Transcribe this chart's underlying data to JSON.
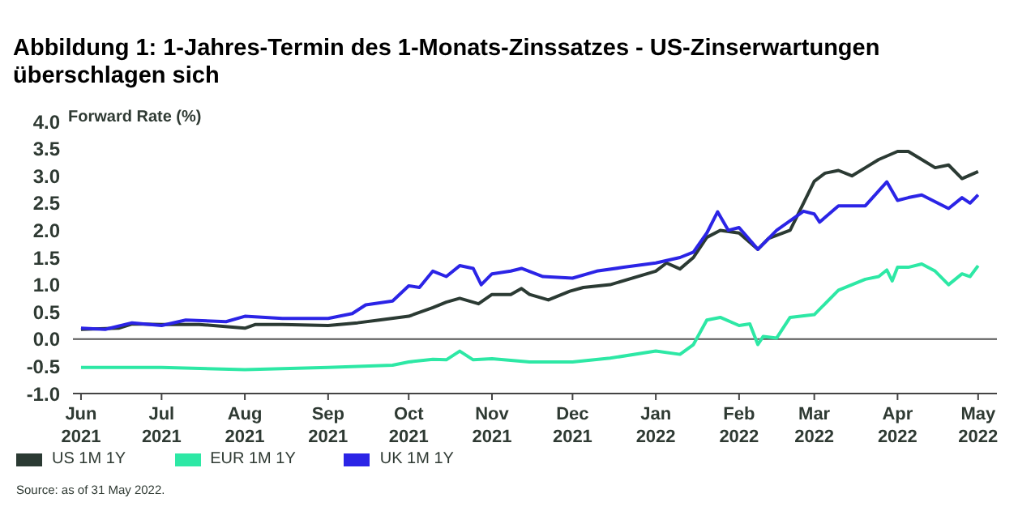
{
  "chart_data": {
    "type": "line",
    "title": "Abbildung 1: 1-Jahres-Termin des 1-Monats-Zinssatzes - US-Zinserwartungen überschlagen sich",
    "ylabel": "Forward Rate (%)",
    "annotations": [
      "Source: as of 31 May 2022."
    ],
    "xlim": [
      "2021-05-29",
      "2022-05-08"
    ],
    "xticks": [
      {
        "value": "2021-06-01",
        "label": "Jun\n2021"
      },
      {
        "value": "2021-07-01",
        "label": "Jul\n2021"
      },
      {
        "value": "2021-08-01",
        "label": "Aug\n2021"
      },
      {
        "value": "2021-09-01",
        "label": "Sep\n2021"
      },
      {
        "value": "2021-10-01",
        "label": "Oct\n2021"
      },
      {
        "value": "2021-11-01",
        "label": "Nov\n2021"
      },
      {
        "value": "2021-12-01",
        "label": "Dec\n2021"
      },
      {
        "value": "2022-01-01",
        "label": "Jan\n2022"
      },
      {
        "value": "2022-02-01",
        "label": "Feb\n2022"
      },
      {
        "value": "2022-03-01",
        "label": "Mar\n2022"
      },
      {
        "value": "2022-04-01",
        "label": "Apr\n2022"
      },
      {
        "value": "2022-05-01",
        "label": "May\n2022"
      }
    ],
    "ylim": [
      -1,
      4
    ],
    "yticks": [
      {
        "value": -1,
        "label": "-1.0"
      },
      {
        "value": -0.5,
        "label": "-0.5"
      },
      {
        "value": 0,
        "label": "0.0"
      },
      {
        "value": 0.5,
        "label": "0.5"
      },
      {
        "value": 1,
        "label": "1.0"
      },
      {
        "value": 1.5,
        "label": "1.5"
      },
      {
        "value": 2,
        "label": "2.0"
      },
      {
        "value": 2.5,
        "label": "2.5"
      },
      {
        "value": 3,
        "label": "3.0"
      },
      {
        "value": 3.5,
        "label": "3.5"
      },
      {
        "value": 4,
        "label": "4.0"
      }
    ],
    "ref_lines": [
      {
        "axis": "y",
        "value": 0,
        "color": "#555555"
      }
    ],
    "grid": false,
    "legend": "bottom left",
    "marker": "none",
    "line_style": "solid",
    "series": [
      {
        "name": "US 1M 1Y",
        "color": "#2b3a33",
        "x": [
          "2021-06-01",
          "2021-06-15",
          "2021-06-20",
          "2021-07-01",
          "2021-07-15",
          "2021-08-01",
          "2021-08-05",
          "2021-08-15",
          "2021-09-01",
          "2021-09-12",
          "2021-09-20",
          "2021-10-01",
          "2021-10-10",
          "2021-10-15",
          "2021-10-20",
          "2021-10-27",
          "2021-11-01",
          "2021-11-08",
          "2021-11-12",
          "2021-11-15",
          "2021-11-22",
          "2021-11-30",
          "2021-12-05",
          "2021-12-15",
          "2022-01-01",
          "2022-01-05",
          "2022-01-10",
          "2022-01-15",
          "2022-01-20",
          "2022-01-25",
          "2022-02-01",
          "2022-02-08",
          "2022-02-12",
          "2022-02-20",
          "2022-03-01",
          "2022-03-05",
          "2022-03-10",
          "2022-03-15",
          "2022-03-20",
          "2022-03-25",
          "2022-04-01",
          "2022-04-05",
          "2022-04-10",
          "2022-04-15",
          "2022-04-20",
          "2022-04-25",
          "2022-05-01"
        ],
        "values": [
          0.18,
          0.2,
          0.28,
          0.27,
          0.27,
          0.2,
          0.27,
          0.27,
          0.25,
          0.3,
          0.35,
          0.42,
          0.58,
          0.68,
          0.75,
          0.65,
          0.82,
          0.82,
          0.93,
          0.82,
          0.72,
          0.88,
          0.95,
          1.0,
          1.25,
          1.4,
          1.29,
          1.5,
          1.87,
          2.0,
          1.95,
          1.65,
          1.85,
          2.0,
          2.9,
          3.05,
          3.1,
          3.0,
          3.15,
          3.3,
          3.45,
          3.45,
          3.3,
          3.15,
          3.2,
          2.95,
          3.08
        ]
      },
      {
        "name": "EUR 1M 1Y",
        "color": "#2de8a5",
        "x": [
          "2021-06-01",
          "2021-07-01",
          "2021-08-01",
          "2021-09-01",
          "2021-09-25",
          "2021-10-01",
          "2021-10-10",
          "2021-10-15",
          "2021-10-20",
          "2021-10-25",
          "2021-11-01",
          "2021-11-15",
          "2021-12-01",
          "2021-12-15",
          "2022-01-01",
          "2022-01-10",
          "2022-01-15",
          "2022-01-20",
          "2022-01-25",
          "2022-02-01",
          "2022-02-05",
          "2022-02-08",
          "2022-02-10",
          "2022-02-15",
          "2022-02-20",
          "2022-03-01",
          "2022-03-10",
          "2022-03-20",
          "2022-03-25",
          "2022-03-28",
          "2022-03-30",
          "2022-04-01",
          "2022-04-05",
          "2022-04-10",
          "2022-04-15",
          "2022-04-20",
          "2022-04-25",
          "2022-04-28",
          "2022-05-01"
        ],
        "values": [
          -0.52,
          -0.52,
          -0.56,
          -0.52,
          -0.48,
          -0.42,
          -0.37,
          -0.38,
          -0.22,
          -0.38,
          -0.36,
          -0.42,
          -0.42,
          -0.35,
          -0.22,
          -0.28,
          -0.1,
          0.35,
          0.4,
          0.25,
          0.28,
          -0.1,
          0.05,
          0.02,
          0.4,
          0.45,
          0.9,
          1.1,
          1.15,
          1.27,
          1.07,
          1.32,
          1.32,
          1.38,
          1.25,
          1.0,
          1.2,
          1.15,
          1.35
        ]
      },
      {
        "name": "UK 1M 1Y",
        "color": "#2b24e6",
        "x": [
          "2021-06-01",
          "2021-06-10",
          "2021-06-20",
          "2021-07-01",
          "2021-07-10",
          "2021-07-25",
          "2021-08-01",
          "2021-08-15",
          "2021-09-01",
          "2021-09-10",
          "2021-09-15",
          "2021-09-25",
          "2021-10-01",
          "2021-10-05",
          "2021-10-10",
          "2021-10-15",
          "2021-10-20",
          "2021-10-25",
          "2021-10-28",
          "2021-11-01",
          "2021-11-08",
          "2021-11-12",
          "2021-11-20",
          "2021-12-01",
          "2021-12-10",
          "2021-12-20",
          "2022-01-01",
          "2022-01-10",
          "2022-01-15",
          "2022-01-20",
          "2022-01-24",
          "2022-01-28",
          "2022-02-01",
          "2022-02-08",
          "2022-02-15",
          "2022-02-25",
          "2022-03-01",
          "2022-03-03",
          "2022-03-10",
          "2022-03-20",
          "2022-03-28",
          "2022-04-01",
          "2022-04-05",
          "2022-04-10",
          "2022-04-20",
          "2022-04-25",
          "2022-04-28",
          "2022-05-01"
        ],
        "values": [
          0.2,
          0.18,
          0.3,
          0.25,
          0.35,
          0.32,
          0.42,
          0.38,
          0.38,
          0.47,
          0.63,
          0.7,
          0.98,
          0.95,
          1.25,
          1.15,
          1.35,
          1.3,
          1.0,
          1.2,
          1.25,
          1.3,
          1.15,
          1.12,
          1.25,
          1.32,
          1.4,
          1.5,
          1.6,
          1.95,
          2.34,
          2.0,
          2.05,
          1.65,
          2.0,
          2.35,
          2.3,
          2.15,
          2.45,
          2.45,
          2.89,
          2.55,
          2.6,
          2.65,
          2.4,
          2.6,
          2.5,
          2.65
        ]
      }
    ]
  }
}
